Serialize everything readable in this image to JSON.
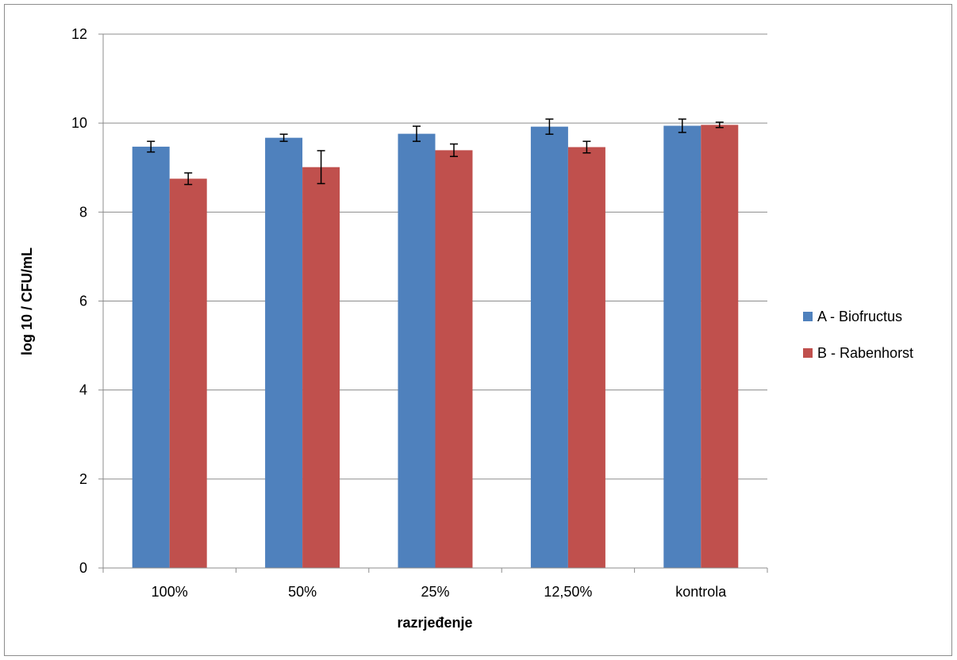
{
  "chart_data": {
    "type": "bar",
    "title": "",
    "xlabel": "razrjeđenje",
    "ylabel": "log 10 / CFU/mL",
    "categories": [
      "100%",
      "50%",
      "25%",
      "12,50%",
      "kontrola"
    ],
    "ylim": [
      0,
      12
    ],
    "yticks": [
      0,
      2,
      4,
      6,
      8,
      10,
      12
    ],
    "grid": true,
    "legend_position": "right",
    "series": [
      {
        "name": "A - Biofructus",
        "color": "#4f81bd",
        "values": [
          9.47,
          9.67,
          9.76,
          9.92,
          9.94
        ],
        "errors": [
          0.12,
          0.08,
          0.17,
          0.17,
          0.15
        ]
      },
      {
        "name": "B - Rabenhorst",
        "color": "#c0504d",
        "values": [
          8.75,
          9.01,
          9.39,
          9.46,
          9.96
        ],
        "errors": [
          0.13,
          0.37,
          0.14,
          0.13,
          0.06
        ]
      }
    ]
  }
}
